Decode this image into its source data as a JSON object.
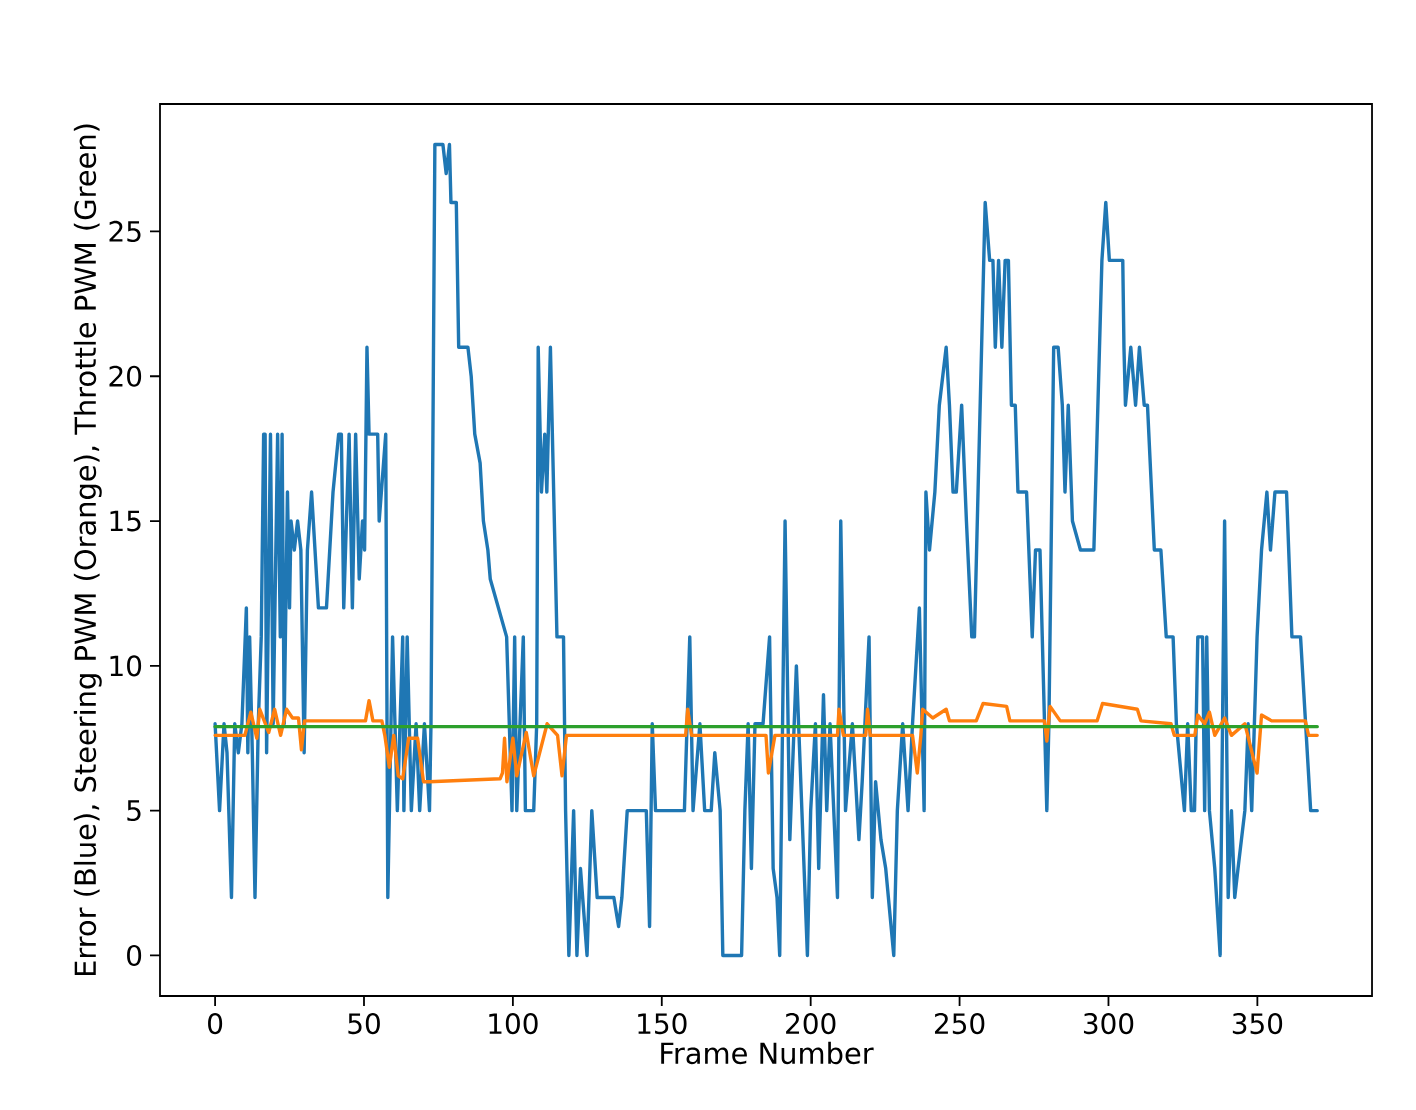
{
  "chart_data": {
    "type": "line",
    "xlabel": "Frame Number",
    "ylabel": "Error (Blue), Steering PWM (Orange), Throttle PWM (Green)",
    "xlim": [
      -18.5,
      388.5
    ],
    "ylim": [
      -1.4,
      29.4
    ],
    "xticks": [
      0,
      50,
      100,
      150,
      200,
      250,
      300,
      350
    ],
    "yticks": [
      0,
      5,
      10,
      15,
      20,
      25
    ],
    "marker": "none",
    "line_style": "solid",
    "series": [
      {
        "color": "#1f77b4",
        "x": [
          0,
          1.5,
          3,
          4,
          5.5,
          6.6,
          7.8,
          9,
          10.5,
          11,
          11.6,
          12.5,
          13.4,
          14.5,
          15.5,
          16.3,
          16.8,
          17.3,
          18.6,
          19.5,
          21,
          21.9,
          22.5,
          23.2,
          24.3,
          25,
          25.5,
          26.6,
          27.7,
          28.8,
          29.9,
          31,
          32.4,
          34.7,
          37.4,
          39.6,
          41.5,
          42.4,
          43.2,
          45,
          46.1,
          47.2,
          48.4,
          49.5,
          50.2,
          51,
          51.7,
          54.6,
          55.1,
          57.3,
          58,
          59.6,
          61.2,
          63,
          63.4,
          64.5,
          65.9,
          67.5,
          68.7,
          70.3,
          72,
          72.5,
          73.8,
          76.5,
          77.6,
          78.7,
          79.2,
          81,
          81.8,
          84.9,
          86,
          87.2,
          89,
          90.1,
          91.6,
          92.4,
          97.9,
          99.7,
          100.6,
          101.3,
          103.5,
          104.2,
          107,
          108,
          108.5,
          109.6,
          110.7,
          111.4,
          112.6,
          114.8,
          117,
          117.7,
          118.8,
          120.4,
          121.5,
          122.7,
          124.9,
          126.5,
          128.3,
          133.9,
          135.5,
          136.6,
          138.4,
          144.8,
          145.9,
          146.8,
          147.9,
          157.6,
          159.4,
          160.5,
          162.8,
          164.4,
          166.6,
          167.8,
          169.6,
          170.5,
          176.8,
          177.9,
          179,
          180.1,
          181.3,
          184,
          186.2,
          187.4,
          188.7,
          189.6,
          191.4,
          193,
          195.2,
          198.9,
          200,
          201.6,
          202.7,
          204.3,
          205.4,
          206.5,
          209,
          210.1,
          211.7,
          214,
          216.2,
          217.3,
          219.6,
          220.7,
          221.8,
          223.6,
          225.2,
          227.9,
          229.1,
          230.9,
          232.7,
          234.2,
          236.5,
          238.1,
          238.7,
          239.9,
          241.7,
          243.2,
          245.5,
          246.6,
          247.8,
          248.9,
          250.7,
          252.3,
          254.1,
          255,
          258.6,
          260.1,
          261.2,
          262,
          263.1,
          264.2,
          265.3,
          266.4,
          267.4,
          268.7,
          269.6,
          272.5,
          274.4,
          275.5,
          277,
          279.3,
          280,
          281.6,
          283.1,
          284.5,
          285.4,
          286.5,
          287.9,
          290.6,
          295.1,
          297.8,
          299.1,
          300.3,
          304.8,
          305.2,
          305.7,
          307.5,
          309.1,
          310.4,
          312,
          313.1,
          315.4,
          317.6,
          319.4,
          321.7,
          322.8,
          325.5,
          326.6,
          327.8,
          328.9,
          330,
          331.6,
          332.3,
          333,
          333.9,
          335.7,
          337.5,
          339,
          340.2,
          341.3,
          342.4,
          343.5,
          345.8,
          346.9,
          348.1,
          349.9,
          351.4,
          353.2,
          354.4,
          355.9,
          359.8,
          361.6,
          364.5,
          367.9,
          370.1
        ],
        "values": [
          8,
          5,
          8,
          7,
          2,
          8,
          7,
          8,
          12,
          7,
          11,
          7,
          2,
          8,
          11,
          18,
          18,
          7,
          18,
          8,
          18,
          11,
          18,
          8,
          16,
          12,
          15,
          14,
          15,
          14,
          7,
          14,
          16,
          12,
          12,
          16,
          18,
          18,
          12,
          18,
          12,
          18,
          13,
          15,
          14,
          21,
          18,
          18,
          15,
          18,
          2,
          11,
          5,
          11,
          5,
          11,
          5,
          8,
          5,
          8,
          5,
          8,
          28,
          28,
          27,
          28,
          26,
          26,
          21,
          21,
          20,
          18,
          17,
          15,
          14,
          13,
          11,
          5,
          11,
          5,
          11,
          5,
          5,
          8,
          21,
          16,
          18,
          16,
          21,
          11,
          11,
          5,
          0,
          5,
          0,
          3,
          0,
          5,
          2,
          2,
          1,
          2,
          5,
          5,
          1,
          8,
          5,
          5,
          11,
          5,
          8,
          5,
          5,
          7,
          5,
          0,
          0,
          5,
          8,
          3,
          8,
          8,
          11,
          3,
          2,
          0,
          15,
          4,
          10,
          0,
          5,
          8,
          3,
          9,
          5,
          8,
          2,
          15,
          5,
          8,
          4,
          6,
          11,
          2,
          6,
          4,
          3,
          0,
          5,
          8,
          5,
          8,
          12,
          5,
          16,
          14,
          16,
          19,
          21,
          19,
          16,
          16,
          19,
          15,
          11,
          11,
          26,
          24,
          24,
          21,
          24,
          21,
          24,
          24,
          19,
          19,
          16,
          16,
          11,
          14,
          14,
          5,
          8,
          21,
          21,
          19,
          16,
          19,
          15,
          14,
          14,
          24,
          26,
          24,
          24,
          21,
          19,
          21,
          19,
          21,
          19,
          19,
          14,
          14,
          11,
          11,
          8,
          5,
          8,
          5,
          5,
          11,
          11,
          5,
          11,
          5,
          3,
          0,
          15,
          2,
          5,
          2,
          3,
          5,
          8,
          5,
          11,
          14,
          16,
          14,
          16,
          16,
          11,
          11,
          5,
          5
        ]
      },
      {
        "color": "#ff7f0e",
        "x": [
          0,
          10,
          12,
          14,
          15,
          18,
          20,
          22,
          24,
          26,
          28,
          29,
          30,
          40,
          50.5,
          51.7,
          53,
          56,
          57,
          58.5,
          60,
          61.5,
          63,
          65,
          68,
          70,
          72,
          95.7,
          96.5,
          97.2,
          98,
          100,
          101.3,
          104.5,
          107,
          111.5,
          115,
          116.5,
          118,
          120,
          158,
          158.7,
          160,
          185,
          185.8,
          188,
          209,
          209.5,
          211,
          218.5,
          219.1,
          220,
          234.2,
          235.8,
          237,
          237.6,
          241,
          245.5,
          246.6,
          255.6,
          257.9,
          265.8,
          266.9,
          278.5,
          279.3,
          280.4,
          283.8,
          296.2,
          298,
          309.7,
          310.9,
          321,
          322.1,
          329,
          330,
          332.3,
          333.9,
          335.7,
          339,
          341.3,
          345.8,
          349.9,
          351.4,
          354.8,
          366.1,
          367.2,
          370.1
        ],
        "values": [
          7.6,
          7.6,
          8.4,
          7.5,
          8.5,
          7.7,
          8.5,
          7.6,
          8.5,
          8.2,
          8.2,
          7.1,
          8.1,
          8.1,
          8.1,
          8.8,
          8.1,
          8.1,
          7.6,
          6.5,
          7.6,
          6.2,
          6.1,
          7.5,
          7.5,
          6.0,
          6.0,
          6.1,
          6.3,
          7.5,
          6.0,
          7.5,
          6.2,
          7.7,
          6.2,
          8.0,
          7.6,
          6.2,
          7.6,
          7.6,
          7.6,
          8.5,
          7.6,
          7.6,
          6.3,
          7.6,
          7.6,
          8.5,
          7.6,
          7.6,
          8.5,
          7.6,
          7.6,
          6.3,
          7.6,
          8.5,
          8.2,
          8.5,
          8.1,
          8.1,
          8.7,
          8.6,
          8.1,
          8.1,
          7.4,
          8.6,
          8.1,
          8.1,
          8.7,
          8.5,
          8.1,
          8.0,
          7.6,
          7.6,
          8.3,
          8.0,
          8.4,
          7.6,
          8.2,
          7.6,
          8.0,
          6.3,
          8.3,
          8.1,
          8.1,
          7.6,
          7.6
        ]
      },
      {
        "color": "#2ca02c",
        "x": [
          0,
          370.1
        ],
        "values": [
          7.9,
          7.9
        ]
      }
    ]
  }
}
